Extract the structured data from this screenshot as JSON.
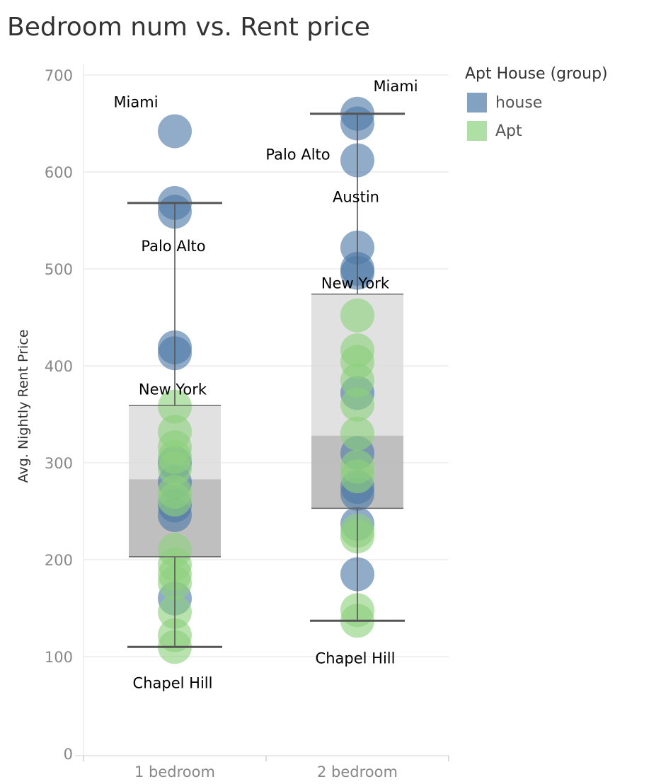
{
  "chart_data": {
    "type": "scatter",
    "title": "Bedroom num vs. Rent price",
    "ylabel": "Avg. Nightly Rent Price",
    "xlabel": "",
    "ylim": [
      0,
      700
    ],
    "yticks": [
      0,
      100,
      200,
      300,
      400,
      500,
      600,
      700
    ],
    "categories": [
      "1 bedroom",
      "2 bedroom"
    ],
    "grid": true,
    "legend": {
      "title": "Apt House (group)",
      "position": "top-right",
      "items": [
        {
          "label": "house",
          "color": "#4e79a7"
        },
        {
          "label": "Apt",
          "color": "#8cd17d"
        }
      ]
    },
    "series": [
      {
        "name": "house",
        "color": "#4e79a7",
        "points": [
          {
            "x": "1 bedroom",
            "y": 642
          },
          {
            "x": "1 bedroom",
            "y": 568
          },
          {
            "x": "1 bedroom",
            "y": 559
          },
          {
            "x": "1 bedroom",
            "y": 419
          },
          {
            "x": "1 bedroom",
            "y": 413
          },
          {
            "x": "1 bedroom",
            "y": 300
          },
          {
            "x": "1 bedroom",
            "y": 280
          },
          {
            "x": "1 bedroom",
            "y": 256
          },
          {
            "x": "1 bedroom",
            "y": 246
          },
          {
            "x": "1 bedroom",
            "y": 160
          },
          {
            "x": "2 bedroom",
            "y": 660
          },
          {
            "x": "2 bedroom",
            "y": 650
          },
          {
            "x": "2 bedroom",
            "y": 612
          },
          {
            "x": "2 bedroom",
            "y": 522
          },
          {
            "x": "2 bedroom",
            "y": 500
          },
          {
            "x": "2 bedroom",
            "y": 496
          },
          {
            "x": "2 bedroom",
            "y": 372
          },
          {
            "x": "2 bedroom",
            "y": 310
          },
          {
            "x": "2 bedroom",
            "y": 275
          },
          {
            "x": "2 bedroom",
            "y": 268
          },
          {
            "x": "2 bedroom",
            "y": 237
          },
          {
            "x": "2 bedroom",
            "y": 185
          }
        ]
      },
      {
        "name": "Apt",
        "color": "#8cd17d",
        "points": [
          {
            "x": "1 bedroom",
            "y": 358
          },
          {
            "x": "1 bedroom",
            "y": 332
          },
          {
            "x": "1 bedroom",
            "y": 316
          },
          {
            "x": "1 bedroom",
            "y": 306
          },
          {
            "x": "1 bedroom",
            "y": 294
          },
          {
            "x": "1 bedroom",
            "y": 270
          },
          {
            "x": "1 bedroom",
            "y": 262
          },
          {
            "x": "1 bedroom",
            "y": 210
          },
          {
            "x": "1 bedroom",
            "y": 195
          },
          {
            "x": "1 bedroom",
            "y": 185
          },
          {
            "x": "1 bedroom",
            "y": 176
          },
          {
            "x": "1 bedroom",
            "y": 146
          },
          {
            "x": "1 bedroom",
            "y": 122
          },
          {
            "x": "1 bedroom",
            "y": 110
          },
          {
            "x": "2 bedroom",
            "y": 452
          },
          {
            "x": "2 bedroom",
            "y": 416
          },
          {
            "x": "2 bedroom",
            "y": 404
          },
          {
            "x": "2 bedroom",
            "y": 385
          },
          {
            "x": "2 bedroom",
            "y": 360
          },
          {
            "x": "2 bedroom",
            "y": 330
          },
          {
            "x": "2 bedroom",
            "y": 296
          },
          {
            "x": "2 bedroom",
            "y": 286
          },
          {
            "x": "2 bedroom",
            "y": 230
          },
          {
            "x": "2 bedroom",
            "y": 224
          },
          {
            "x": "2 bedroom",
            "y": 148
          },
          {
            "x": "2 bedroom",
            "y": 137
          }
        ]
      }
    ],
    "boxplots": [
      {
        "category": "1 bedroom",
        "whisker_low": 110,
        "q1": 203,
        "median": 283,
        "q3": 359,
        "whisker_high": 568
      },
      {
        "category": "2 bedroom",
        "whisker_low": 137,
        "q1": 253,
        "median": 328,
        "q3": 474,
        "whisker_high": 660
      }
    ],
    "annotations": [
      {
        "text": "Miami",
        "category": "1 bedroom",
        "y": 642
      },
      {
        "text": "Palo Alto",
        "category": "1 bedroom",
        "y": 559
      },
      {
        "text": "New York",
        "category": "1 bedroom",
        "y": 358
      },
      {
        "text": "Chapel Hill",
        "category": "1 bedroom",
        "y": 110
      },
      {
        "text": "Miami",
        "category": "2 bedroom",
        "y": 660
      },
      {
        "text": "Palo Alto",
        "category": "2 bedroom",
        "y": 650
      },
      {
        "text": "Austin",
        "category": "2 bedroom",
        "y": 612
      },
      {
        "text": "New York",
        "category": "2 bedroom",
        "y": 474
      },
      {
        "text": "Chapel Hill",
        "category": "2 bedroom",
        "y": 137
      }
    ]
  }
}
